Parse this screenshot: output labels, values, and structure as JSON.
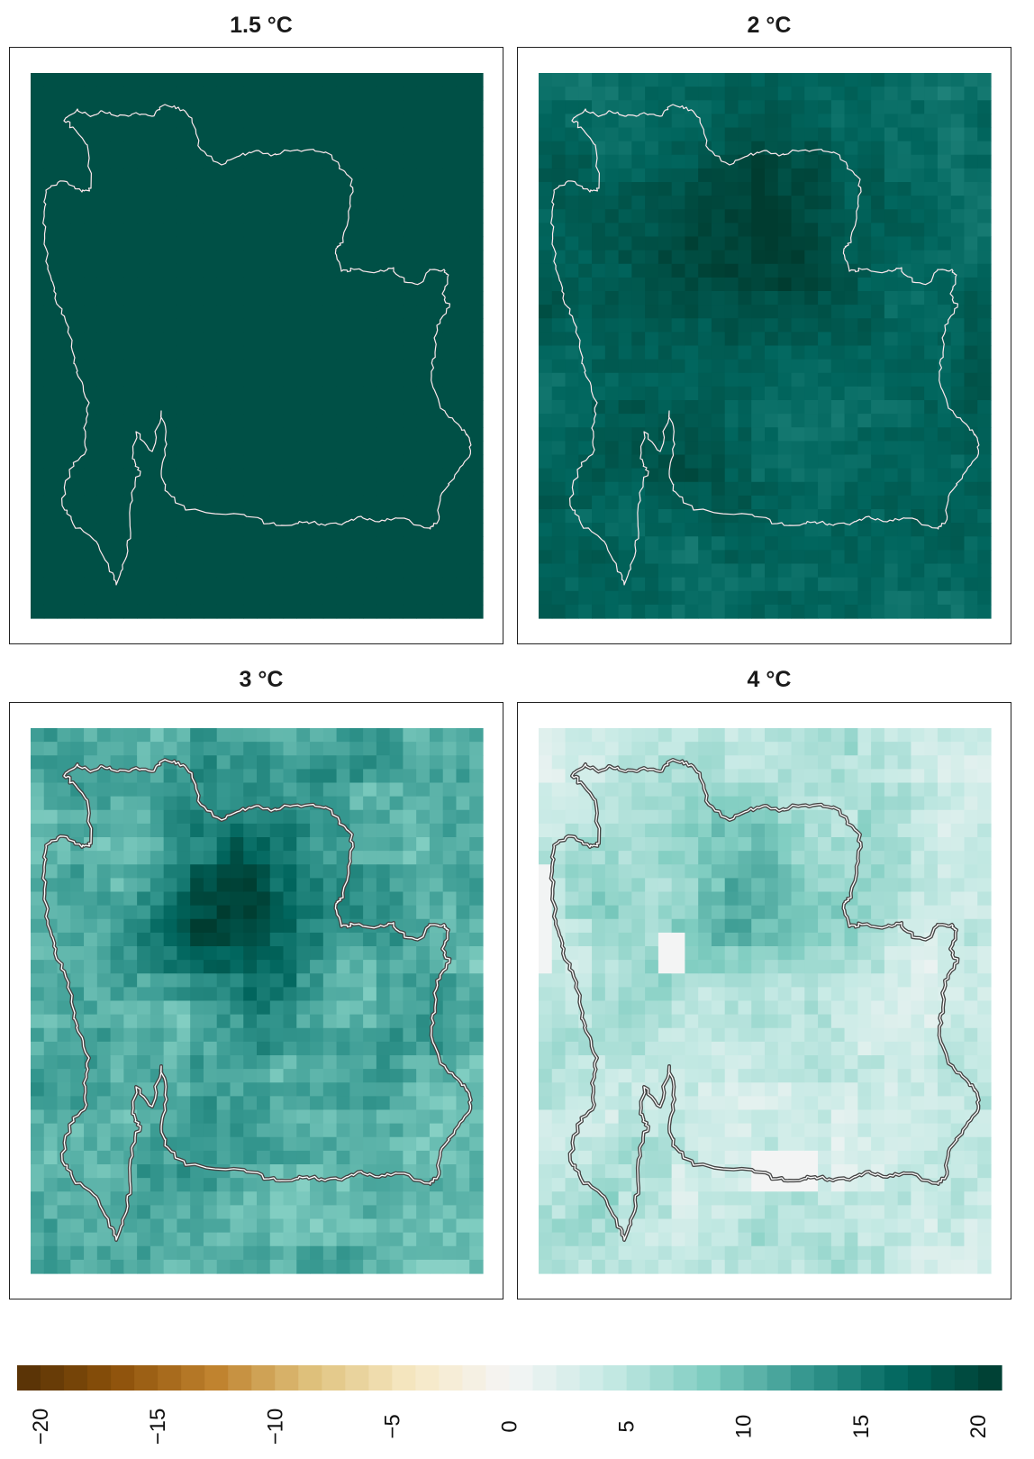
{
  "chart_data": [
    {
      "type": "heatmap",
      "title": "1.5 °C",
      "base_value": 19,
      "outline_style": "white",
      "grid": false
    },
    {
      "type": "heatmap",
      "title": "2 °C",
      "base_value": 17,
      "outline_style": "white",
      "grid": false
    },
    {
      "type": "heatmap",
      "title": "3 °C",
      "base_value": 11,
      "outline_style": "double",
      "grid": false
    },
    {
      "type": "heatmap",
      "title": "4 °C",
      "base_value": 4.5,
      "outline_style": "double",
      "grid": false
    }
  ],
  "legend": {
    "type": "colorbar",
    "range": [
      -21,
      21
    ],
    "tick_values": [
      -20,
      -15,
      -10,
      -5,
      0,
      5,
      10,
      15,
      20
    ],
    "tick_labels": [
      "−20",
      "−15",
      "−10",
      "−5",
      "0",
      "5",
      "10",
      "15",
      "20"
    ],
    "colors_negative": [
      "#543005",
      "#8c510a",
      "#bf812d",
      "#dfc27d",
      "#f6e8c3"
    ],
    "color_zero": "#f5f5f5",
    "colors_positive": [
      "#c7eae5",
      "#80cdc1",
      "#35978f",
      "#01665e",
      "#003c30"
    ]
  }
}
